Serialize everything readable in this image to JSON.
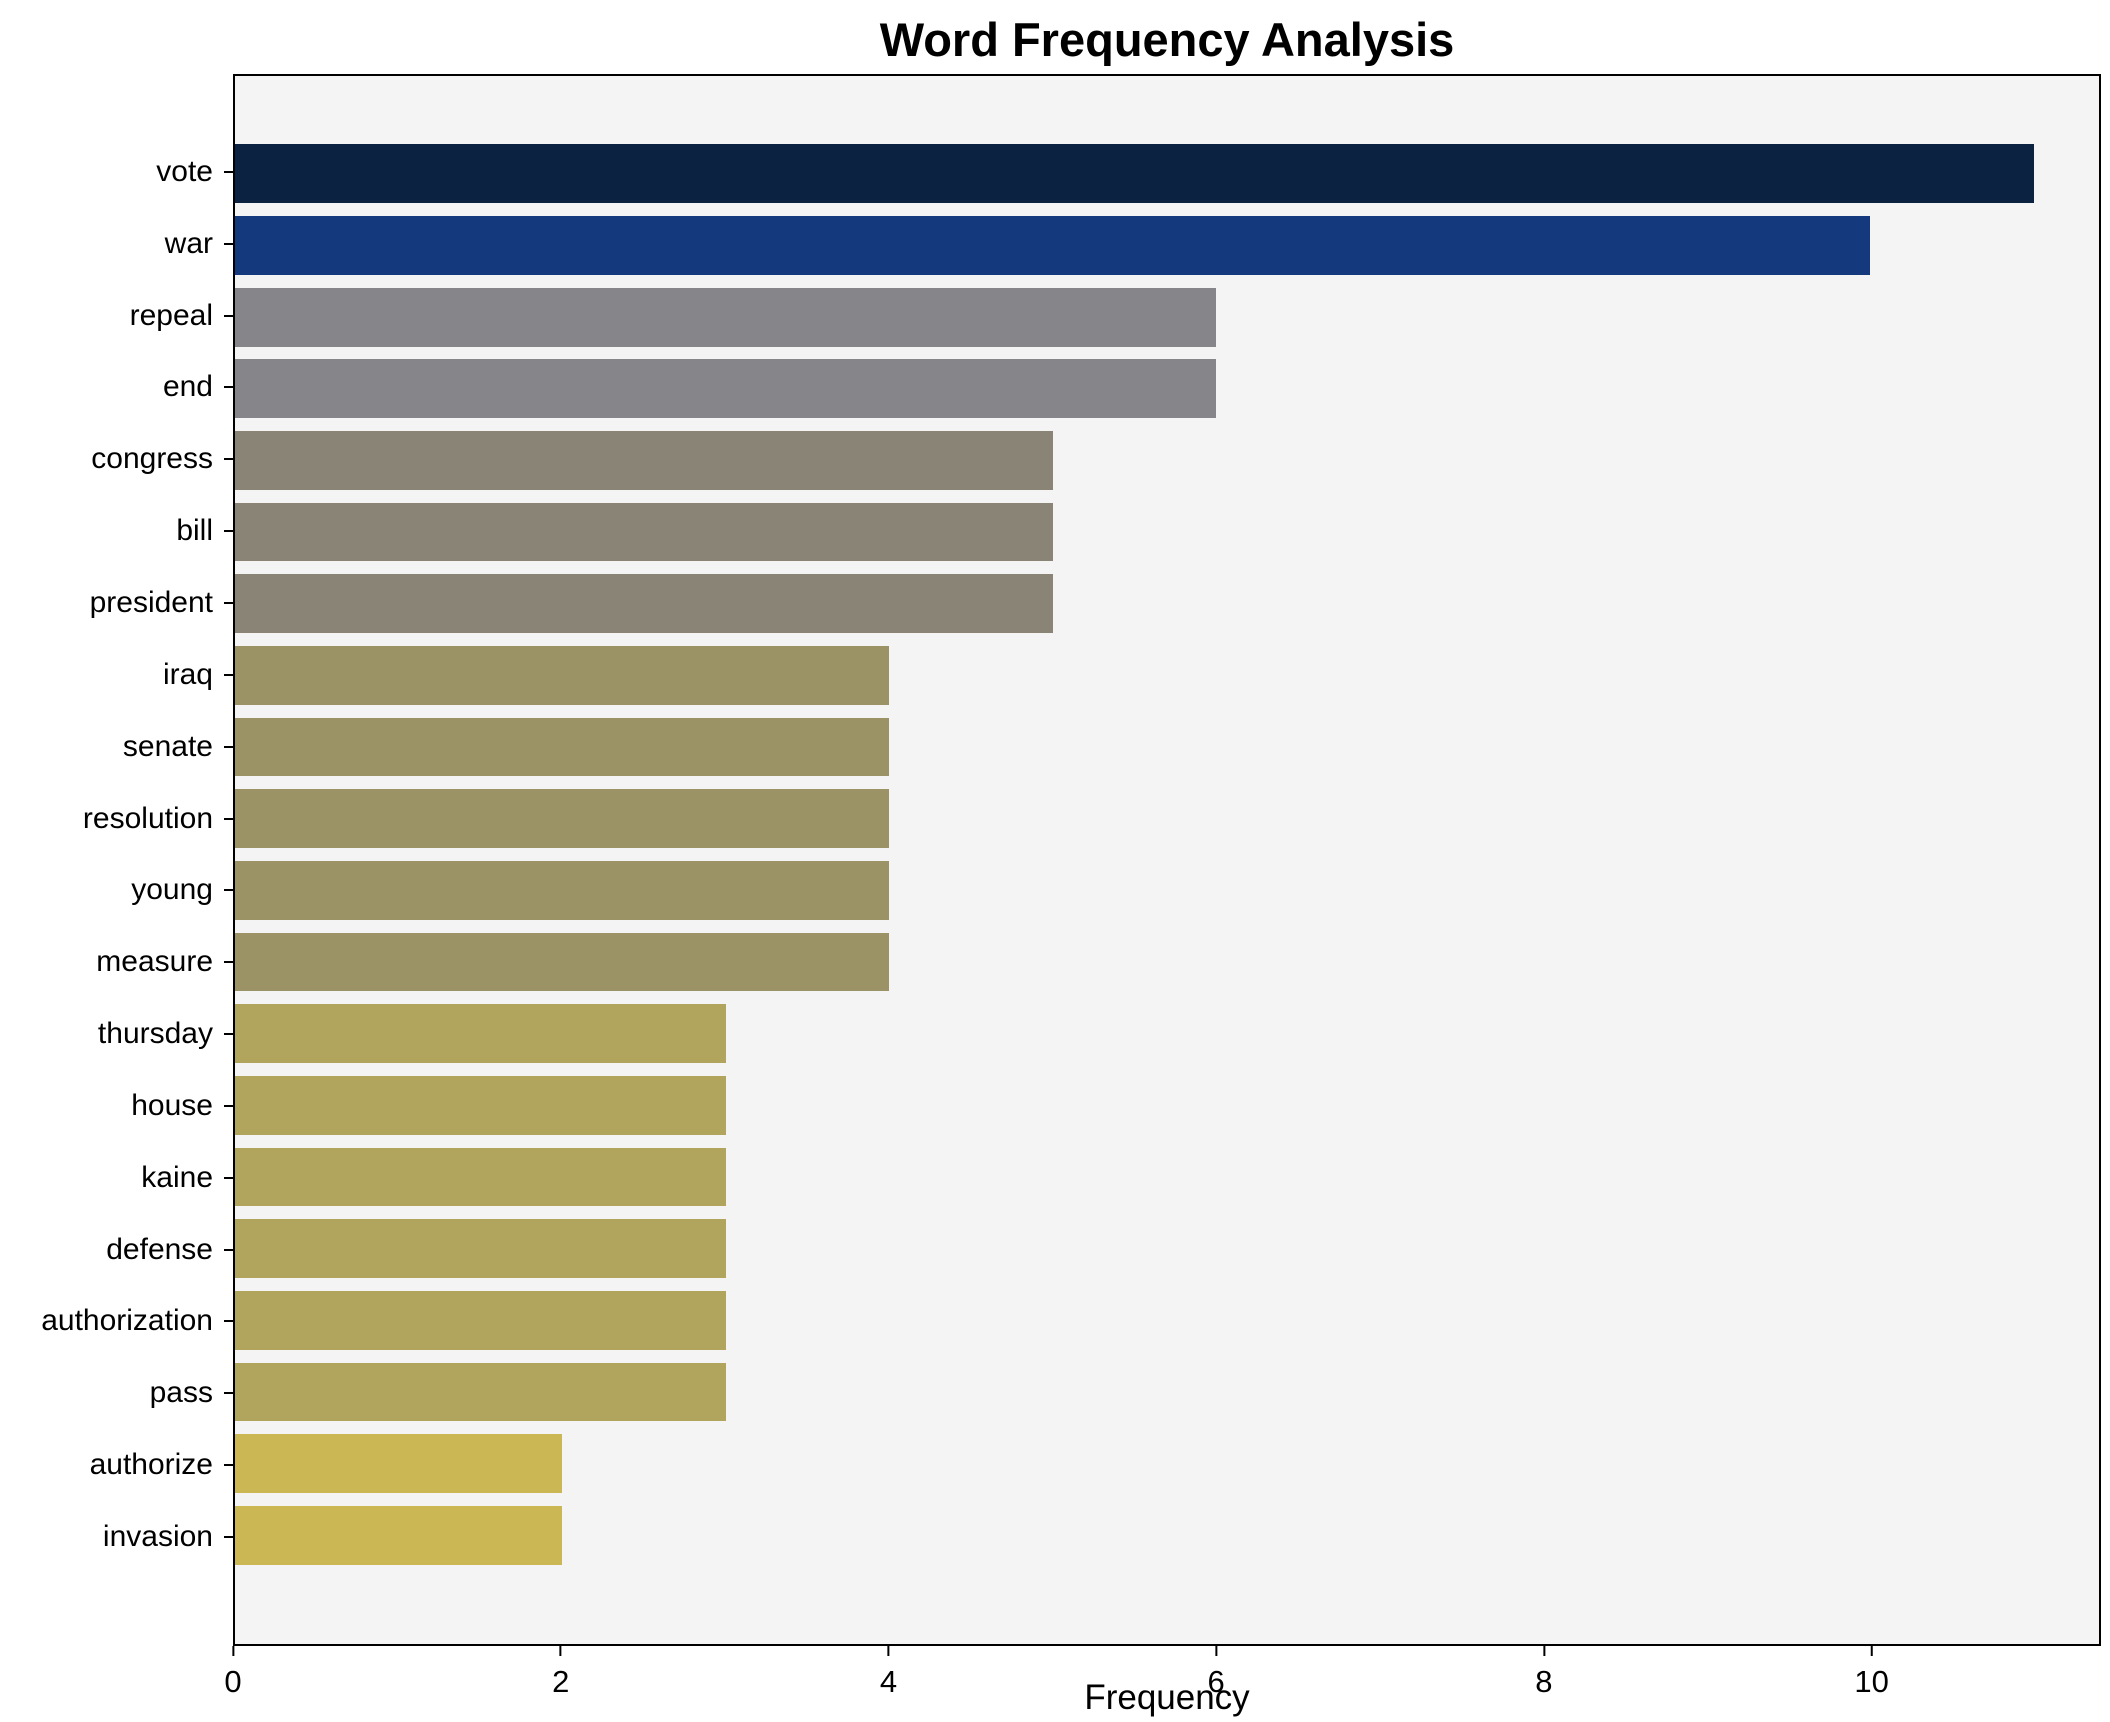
{
  "chart_data": {
    "type": "bar",
    "orientation": "horizontal",
    "title": "Word Frequency Analysis",
    "xlabel": "Frequency",
    "ylabel": "",
    "categories": [
      "vote",
      "war",
      "repeal",
      "end",
      "congress",
      "bill",
      "president",
      "iraq",
      "senate",
      "resolution",
      "young",
      "measure",
      "thursday",
      "house",
      "kaine",
      "defense",
      "authorization",
      "pass",
      "authorize",
      "invasion"
    ],
    "values": [
      11,
      10,
      6,
      6,
      5,
      5,
      5,
      4,
      4,
      4,
      4,
      4,
      3,
      3,
      3,
      3,
      3,
      3,
      2,
      2
    ],
    "bar_colors": [
      "#0b2240",
      "#15397d",
      "#86868a",
      "#86868a",
      "#8a8476",
      "#8a8476",
      "#8a8476",
      "#9b9366",
      "#9b9366",
      "#9b9366",
      "#9b9366",
      "#9b9366",
      "#b1a55e",
      "#b1a55e",
      "#b1a55e",
      "#b1a55e",
      "#b1a55e",
      "#b1a55e",
      "#cbb854",
      "#cbb854"
    ],
    "xlim": [
      0,
      11.4
    ],
    "xticks": [
      0,
      2,
      4,
      6,
      8,
      10
    ],
    "grid": false,
    "legend_position": "none",
    "plot_background": "#f4f4f5",
    "figure_background": "#ffffff"
  }
}
